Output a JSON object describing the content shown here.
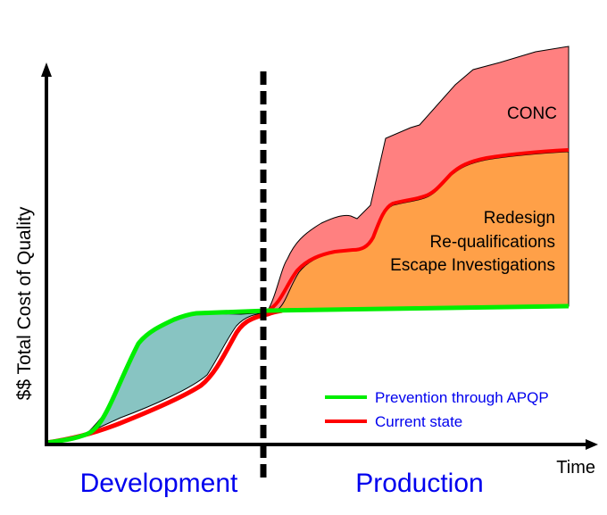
{
  "chart_data": {
    "type": "area",
    "title": "",
    "ylabel": "$$ Total Cost of Quality",
    "xlabel": "Time",
    "phases": [
      "Development",
      "Production"
    ],
    "legend": [
      {
        "label": "Prevention through APQP",
        "color": "#00ee00"
      },
      {
        "label": "Current state",
        "color": "#ff0000"
      }
    ],
    "legend_position": "bottom-right",
    "area_labels": {
      "conc": "CONC",
      "failure_lines": [
        "Redesign",
        "Re-qualifications",
        "Escape Investigations"
      ]
    },
    "colors": {
      "prevention": "#00ee00",
      "current": "#ff0000",
      "dev_gap": "#88c4c2",
      "conc_area": "#ff8080",
      "failure_area": "#ffa048",
      "phase_text": "#0000ee"
    }
  }
}
